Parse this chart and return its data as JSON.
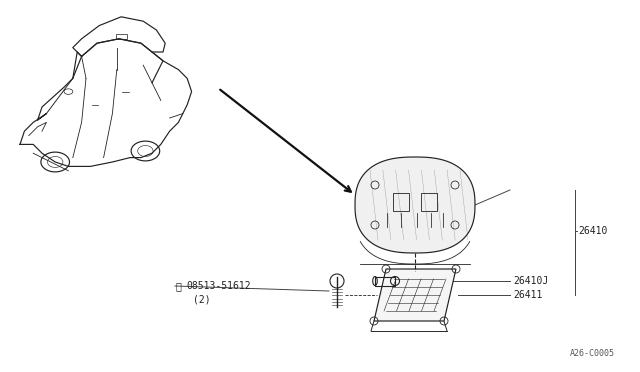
{
  "bg_color": "#ffffff",
  "line_color": "#222222",
  "text_color": "#222222",
  "diagram_code": "A26-C0005",
  "fig_width": 6.4,
  "fig_height": 3.72,
  "dpi": 100,
  "label_26410": "26410",
  "label_26410J": "26410J",
  "label_26411": "26411",
  "label_screw": "08513-51612",
  "label_screw2": "(2)"
}
